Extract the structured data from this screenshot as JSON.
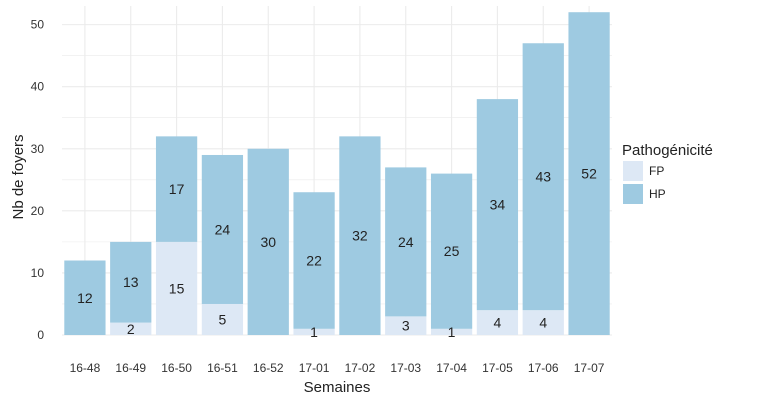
{
  "chart_data": {
    "type": "bar",
    "stacked": true,
    "categories": [
      "16-48",
      "16-49",
      "16-50",
      "16-51",
      "16-52",
      "17-01",
      "17-02",
      "17-03",
      "17-04",
      "17-05",
      "17-06",
      "17-07"
    ],
    "series": [
      {
        "name": "FP",
        "values": [
          0,
          2,
          15,
          5,
          0,
          1,
          0,
          3,
          1,
          4,
          4,
          0
        ],
        "color": "#dde8f5"
      },
      {
        "name": "HP",
        "values": [
          12,
          13,
          17,
          24,
          30,
          22,
          32,
          24,
          25,
          34,
          43,
          52
        ],
        "color": "#9ecae1"
      }
    ],
    "data_labels": {
      "FP": [
        "",
        "2",
        "15",
        "5",
        "",
        "1",
        "",
        "3",
        "1",
        "4",
        "4",
        ""
      ],
      "HP": [
        "12",
        "13",
        "17",
        "24",
        "30",
        "22",
        "32",
        "24",
        "25",
        "34",
        "43",
        "52"
      ]
    },
    "xlabel": "Semaines",
    "ylabel": "Nb de foyers",
    "ylim": [
      0,
      53
    ],
    "yticks": [
      0,
      10,
      20,
      30,
      40,
      50
    ],
    "ytick_labels": [
      "0",
      "10",
      "20",
      "30",
      "40",
      "50"
    ],
    "grid": true,
    "grid_color": "#ebebeb",
    "legend": {
      "title": "Pathogénicité",
      "position": "right",
      "entries": [
        "FP",
        "HP"
      ]
    }
  }
}
